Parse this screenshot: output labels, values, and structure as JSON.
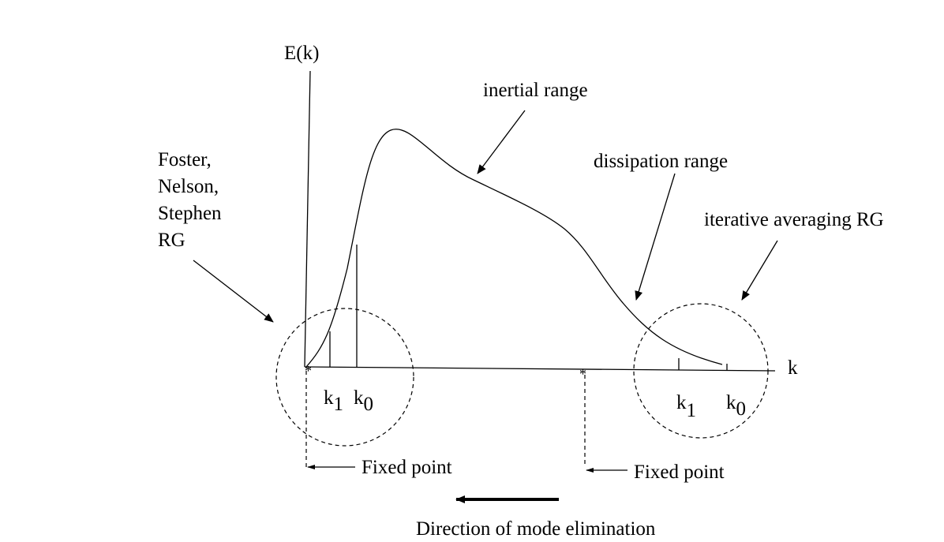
{
  "axes": {
    "y_label": "E(k)",
    "x_label": "k"
  },
  "labels": {
    "inertial": "inertial range",
    "dissipation": "dissipation range",
    "iterative": "iterative averaging RG",
    "fns": [
      "Foster,",
      "Nelson,",
      "Stephen",
      "RG"
    ]
  },
  "left_marks": [
    {
      "base": "k",
      "sub": "1"
    },
    {
      "base": "k",
      "sub": "0"
    }
  ],
  "right_marks": [
    {
      "base": "k",
      "sub": "1"
    },
    {
      "base": "k",
      "sub": "0"
    }
  ],
  "fixed_points": [
    "Fixed point",
    "Fixed point"
  ],
  "direction": "Direction of mode elimination"
}
